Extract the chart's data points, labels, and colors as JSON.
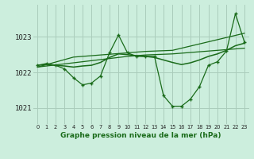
{
  "title": "Graphe pression niveau de la mer (hPa)",
  "bg_color": "#cceedd",
  "grid_color": "#aaccbb",
  "line_color": "#1a6b1a",
  "x_ticks": [
    0,
    1,
    2,
    3,
    4,
    5,
    6,
    7,
    8,
    9,
    10,
    11,
    12,
    13,
    14,
    15,
    16,
    17,
    18,
    19,
    20,
    21,
    22,
    23
  ],
  "y_ticks": [
    1021,
    1022,
    1023
  ],
  "ylim": [
    1020.55,
    1023.9
  ],
  "xlim": [
    -0.5,
    23.5
  ],
  "pressure_main": [
    1022.2,
    1022.25,
    1022.2,
    1022.1,
    1021.85,
    1021.65,
    1021.7,
    1021.9,
    1022.55,
    1023.05,
    1022.55,
    1022.45,
    1022.45,
    1022.45,
    1021.35,
    1021.05,
    1021.05,
    1021.25,
    1021.6,
    1022.2,
    1022.3,
    1022.6,
    1023.65,
    1022.85
  ],
  "pressure_smooth": [
    1022.2,
    1022.22,
    1022.2,
    1022.18,
    1022.15,
    1022.18,
    1022.2,
    1022.28,
    1022.42,
    1022.52,
    1022.5,
    1022.47,
    1022.45,
    1022.42,
    1022.35,
    1022.28,
    1022.22,
    1022.27,
    1022.35,
    1022.45,
    1022.52,
    1022.62,
    1022.75,
    1022.82
  ],
  "trend_line_upper": [
    1022.15,
    1022.22,
    1022.29,
    1022.36,
    1022.43,
    1022.45,
    1022.47,
    1022.49,
    1022.51,
    1022.53,
    1022.55,
    1022.57,
    1022.59,
    1022.6,
    1022.61,
    1022.62,
    1022.68,
    1022.74,
    1022.8,
    1022.86,
    1022.92,
    1022.98,
    1023.04,
    1023.1
  ],
  "trend_line_lower": [
    1022.15,
    1022.18,
    1022.21,
    1022.24,
    1022.27,
    1022.3,
    1022.33,
    1022.36,
    1022.39,
    1022.42,
    1022.45,
    1022.47,
    1022.49,
    1022.5,
    1022.51,
    1022.52,
    1022.54,
    1022.56,
    1022.58,
    1022.6,
    1022.62,
    1022.64,
    1022.66,
    1022.68
  ]
}
